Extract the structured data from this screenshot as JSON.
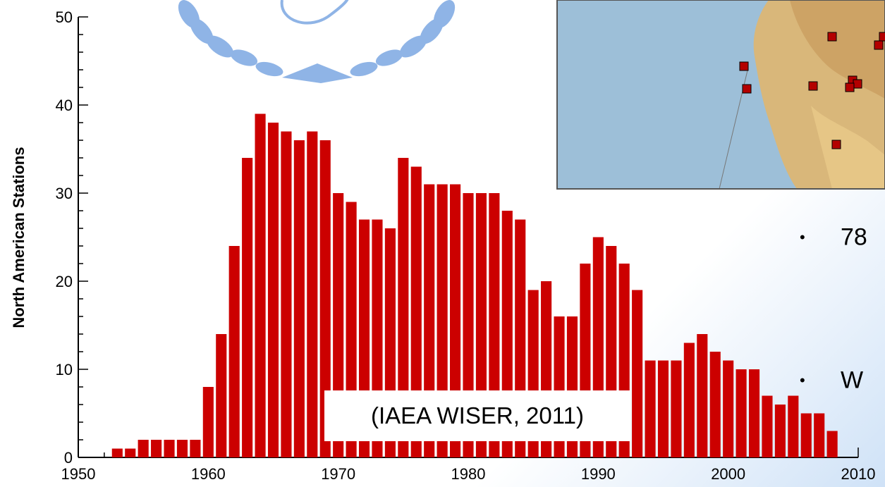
{
  "colors": {
    "bar": "#cc0000",
    "axis": "#000000",
    "ocean": "#9dbfd8",
    "land": "#d9b77a",
    "station_marker": "#b30000"
  },
  "decorations": {
    "logo": "wreath-emblem-icon",
    "map": "north-america-station-map"
  },
  "source_note": "(IAEA WISER, 2011)",
  "bullets": [
    {
      "symbol": "•",
      "text": "78"
    },
    {
      "symbol": "•",
      "text": "W"
    }
  ],
  "chart_data": {
    "type": "bar",
    "xlabel": "",
    "ylabel": "North American Stations",
    "xlim": [
      1950,
      2010
    ],
    "ylim": [
      0,
      50
    ],
    "x_ticks": [
      1950,
      1960,
      1970,
      1980,
      1990,
      2000,
      2010
    ],
    "y_ticks": [
      0,
      10,
      20,
      30,
      40,
      50
    ],
    "grid": false,
    "x": [
      1953,
      1954,
      1955,
      1956,
      1957,
      1958,
      1959,
      1960,
      1961,
      1962,
      1963,
      1964,
      1965,
      1966,
      1967,
      1968,
      1969,
      1970,
      1971,
      1972,
      1973,
      1974,
      1975,
      1976,
      1977,
      1978,
      1979,
      1980,
      1981,
      1982,
      1983,
      1984,
      1985,
      1986,
      1987,
      1988,
      1989,
      1990,
      1991,
      1992,
      1993,
      1994,
      1995,
      1996,
      1997,
      1998,
      1999,
      2000,
      2001,
      2002,
      2003,
      2004,
      2005,
      2006,
      2007,
      2008
    ],
    "values": [
      1,
      1,
      2,
      2,
      2,
      2,
      2,
      8,
      14,
      24,
      34,
      39,
      38,
      37,
      36,
      37,
      36,
      30,
      29,
      27,
      27,
      26,
      34,
      33,
      31,
      31,
      31,
      30,
      30,
      30,
      28,
      27,
      19,
      20,
      16,
      16,
      22,
      25,
      24,
      22,
      19,
      11,
      11,
      11,
      13,
      14,
      12,
      11,
      10,
      10,
      7,
      6,
      7,
      5,
      5,
      3
    ]
  }
}
